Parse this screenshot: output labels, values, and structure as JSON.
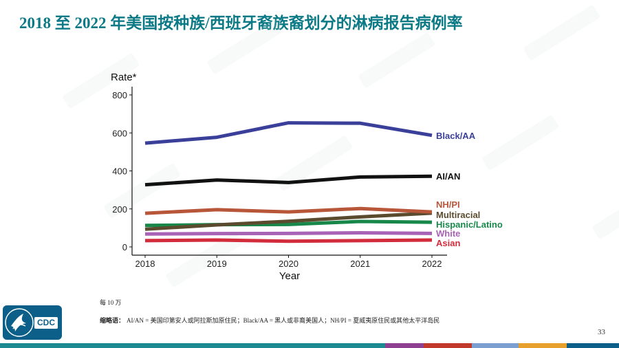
{
  "slide": {
    "title": "2018 至 2022 年美国按种族/西班牙裔族裔划分的淋病报告病例率",
    "footnote": "每 10 万",
    "abbrev_label": "缩略语：",
    "abbrev_text": "AI/AN = 美国印第安人或阿拉斯加原住民；Black/AA = 黑人或非裔美国人；NH/PI = 夏威夷原住民或其他太平洋岛民",
    "page_number": "33",
    "logo_text": "CDC",
    "logo_icon": "hhs-eagle-icon"
  },
  "colors": {
    "title": "#0c7a86",
    "footer_bar": [
      "#1d8a91",
      "#1d8a91",
      "#8e3f8f",
      "#c0392b",
      "#7a9fd0",
      "#e7a02b",
      "#0b5f89"
    ]
  },
  "chart_data": {
    "type": "line",
    "ylabel": "Rate*",
    "xlabel": "Year",
    "x": [
      2018,
      2019,
      2020,
      2021,
      2022
    ],
    "ylim": [
      0,
      830
    ],
    "yticks": [
      0,
      200,
      400,
      600,
      800
    ],
    "grid": false,
    "series": [
      {
        "name": "Black/AA",
        "color": "#3a3f99",
        "values": [
          546,
          577,
          653,
          651,
          587
        ]
      },
      {
        "name": "AI/AN",
        "color": "#111111",
        "values": [
          327,
          352,
          339,
          368,
          372
        ]
      },
      {
        "name": "NH/PI",
        "color": "#b8563a",
        "values": [
          177,
          196,
          184,
          202,
          184
        ]
      },
      {
        "name": "Multiracial",
        "color": "#5a4a2e",
        "values": [
          93,
          116,
          135,
          158,
          178
        ]
      },
      {
        "name": "Hispanic/Latino",
        "color": "#17884a",
        "values": [
          113,
          117,
          118,
          134,
          130
        ]
      },
      {
        "name": "White",
        "color": "#a862b6",
        "values": [
          68,
          70,
          71,
          74,
          71
        ]
      },
      {
        "name": "Asian",
        "color": "#d22b3c",
        "values": [
          33,
          36,
          30,
          33,
          36
        ]
      }
    ]
  }
}
